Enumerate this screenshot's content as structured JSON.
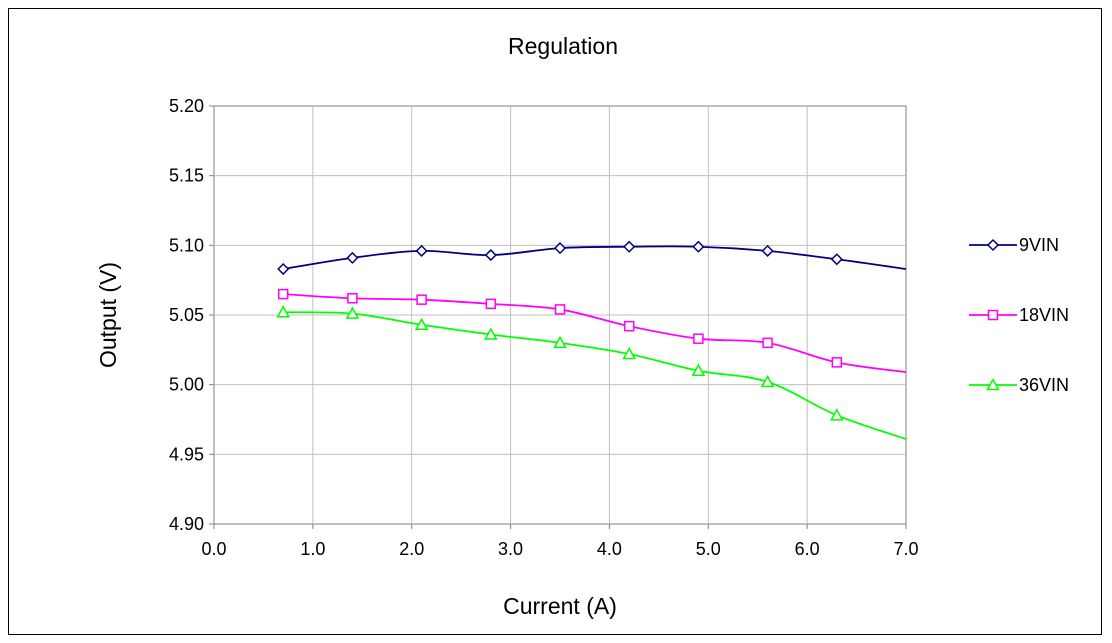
{
  "chart_data": {
    "type": "line",
    "title": "Regulation",
    "xlabel": "Current (A)",
    "ylabel": "Output (V)",
    "xlim": [
      0,
      7
    ],
    "ylim": [
      4.9,
      5.2
    ],
    "xticks": [
      "0.0",
      "1.0",
      "2.0",
      "3.0",
      "4.0",
      "5.0",
      "6.0",
      "7.0"
    ],
    "yticks": [
      "4.90",
      "4.95",
      "5.00",
      "5.05",
      "5.10",
      "5.15",
      "5.20"
    ],
    "grid": true,
    "legend_position": "right",
    "series": [
      {
        "name": "9VIN",
        "color": "#000080",
        "marker": "diamond",
        "x": [
          0.7,
          1.4,
          2.1,
          2.8,
          3.5,
          4.2,
          4.9,
          5.6,
          6.3,
          7.0
        ],
        "y": [
          5.083,
          5.091,
          5.096,
          5.093,
          5.098,
          5.099,
          5.099,
          5.096,
          5.09,
          5.083
        ]
      },
      {
        "name": "18VIN",
        "color": "#ff00ff",
        "marker": "square",
        "x": [
          0.7,
          1.4,
          2.1,
          2.8,
          3.5,
          4.2,
          4.9,
          5.6,
          6.3,
          7.0
        ],
        "y": [
          5.065,
          5.062,
          5.061,
          5.058,
          5.054,
          5.042,
          5.033,
          5.03,
          5.016,
          5.009
        ]
      },
      {
        "name": "36VIN",
        "color": "#00ff00",
        "marker": "triangle",
        "x": [
          0.7,
          1.4,
          2.1,
          2.8,
          3.5,
          4.2,
          4.9,
          5.6,
          6.3,
          7.0
        ],
        "y": [
          5.052,
          5.051,
          5.043,
          5.036,
          5.03,
          5.022,
          5.01,
          5.002,
          4.978,
          4.961
        ]
      }
    ]
  }
}
